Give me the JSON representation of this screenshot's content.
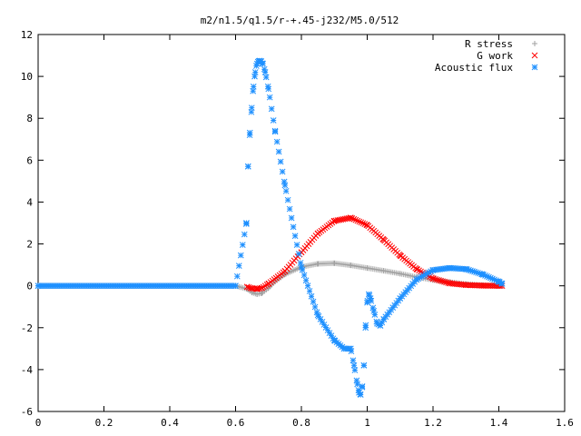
{
  "chart_data": {
    "type": "scatter",
    "title": "m2/n1.5/q1.5/r-+.45-j232/M5.0/512",
    "xlabel": "",
    "ylabel": "",
    "xlim": [
      0,
      1.6
    ],
    "ylim": [
      -6,
      12
    ],
    "xticks": [
      "0",
      "0.2",
      "0.4",
      "0.6",
      "0.8",
      "1",
      "1.2",
      "1.4",
      "1.6"
    ],
    "yticks": [
      "-6",
      "-4",
      "-2",
      "0",
      "2",
      "4",
      "6",
      "8",
      "10",
      "12"
    ],
    "grid": false,
    "legend_position": "top-right",
    "series": [
      {
        "name": "R stress",
        "marker": "plus",
        "color": "#a0a0a0",
        "x": [
          0.0,
          0.6,
          0.635,
          0.65,
          0.665,
          0.68,
          0.7,
          0.72,
          0.75,
          0.8,
          0.85,
          0.9,
          0.95,
          1.0,
          1.05,
          1.1,
          1.15,
          1.2,
          1.25,
          1.3,
          1.35,
          1.4,
          1.41
        ],
        "y": [
          0.0,
          0.0,
          -0.15,
          -0.32,
          -0.4,
          -0.35,
          -0.1,
          0.2,
          0.55,
          0.9,
          1.05,
          1.08,
          0.98,
          0.85,
          0.72,
          0.58,
          0.42,
          0.28,
          0.18,
          0.08,
          0.03,
          0.0,
          0.0
        ]
      },
      {
        "name": "G work",
        "marker": "cross",
        "color": "#ff0000",
        "x": [
          0.635,
          0.65,
          0.665,
          0.68,
          0.7,
          0.75,
          0.8,
          0.85,
          0.9,
          0.95,
          1.0,
          1.05,
          1.1,
          1.15,
          1.2,
          1.25,
          1.3,
          1.35,
          1.4,
          1.41
        ],
        "y": [
          -0.05,
          -0.12,
          -0.15,
          -0.1,
          0.1,
          0.7,
          1.6,
          2.5,
          3.1,
          3.25,
          2.9,
          2.2,
          1.45,
          0.8,
          0.35,
          0.12,
          0.04,
          0.01,
          0.0,
          0.0
        ]
      },
      {
        "name": "Acoustic flux",
        "marker": "star",
        "color": "#1e90ff",
        "x": [
          0.0,
          0.6,
          0.633,
          0.638,
          0.643,
          0.648,
          0.653,
          0.658,
          0.663,
          0.668,
          0.673,
          0.678,
          0.683,
          0.69,
          0.7,
          0.72,
          0.75,
          0.8,
          0.85,
          0.9,
          0.93,
          0.95,
          0.96,
          0.97,
          0.975,
          0.98,
          0.985,
          0.99,
          0.995,
          1.0,
          1.005,
          1.01,
          1.02,
          1.03,
          1.04,
          1.05,
          1.1,
          1.15,
          1.2,
          1.25,
          1.3,
          1.35,
          1.4,
          1.41
        ],
        "y": [
          0.0,
          0.0,
          3.0,
          5.7,
          7.2,
          8.3,
          9.3,
          10.0,
          10.5,
          10.7,
          10.75,
          10.72,
          10.6,
          10.2,
          9.4,
          7.4,
          4.8,
          0.9,
          -1.4,
          -2.6,
          -3.0,
          -3.0,
          -3.8,
          -4.7,
          -5.1,
          -5.2,
          -4.8,
          -3.8,
          -2.0,
          -0.8,
          -0.4,
          -0.6,
          -1.2,
          -1.8,
          -1.9,
          -1.6,
          -0.6,
          0.3,
          0.75,
          0.85,
          0.8,
          0.55,
          0.2,
          0.1
        ]
      }
    ]
  }
}
